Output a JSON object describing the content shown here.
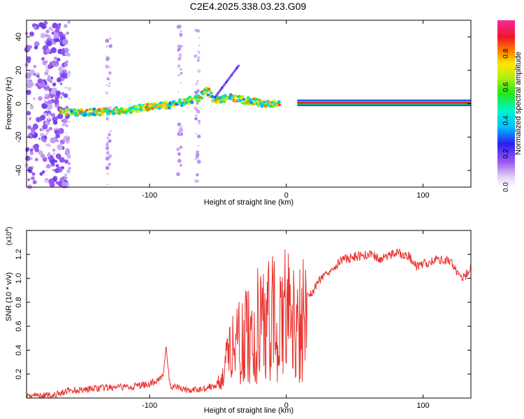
{
  "title": "C2E4.2025.338.03.23.G09",
  "chart_data": [
    {
      "type": "heatmap",
      "xlabel": "Height of straight line (km)",
      "ylabel": "Frequency (Hz)",
      "xlim": [
        -190,
        135
      ],
      "ylim": [
        -50,
        50
      ],
      "x_ticks": [
        -100,
        0,
        100
      ],
      "y_ticks": [
        -40,
        -20,
        0,
        20,
        40
      ],
      "colorbar": {
        "label": "Normalized spectral amplitude",
        "range": [
          0.0,
          1.0
        ],
        "ticks": [
          0.0,
          0.2,
          0.4,
          0.6,
          0.8
        ]
      },
      "ridge": [
        [
          -165,
          -5.5
        ],
        [
          -140,
          -5
        ],
        [
          -120,
          -4
        ],
        [
          -100,
          -2
        ],
        [
          -80,
          0
        ],
        [
          -65,
          3
        ],
        [
          -58,
          8
        ],
        [
          -52,
          2
        ],
        [
          -40,
          4
        ],
        [
          -30,
          2
        ],
        [
          -15,
          0
        ],
        [
          0,
          0
        ],
        [
          10,
          0.5
        ],
        [
          135,
          0.5
        ]
      ]
    },
    {
      "type": "line",
      "xlabel": "Height of straight line (km)",
      "ylabel": "SNR (10 * v/v)",
      "y_multiplier": "(x10",
      "y_multiplier_exp": "4",
      "xlim": [
        -190,
        135
      ],
      "ylim": [
        0,
        1.4
      ],
      "x_ticks": [
        -100,
        0,
        100
      ],
      "y_ticks": [
        0.2,
        0.4,
        0.6,
        0.8,
        1.0,
        1.2
      ],
      "y_tick_labels": [
        "0.2",
        "0.4",
        "0.6",
        "0.8",
        "1.0",
        "1.2"
      ],
      "series": [
        {
          "name": "SNR",
          "color": "#e8332e",
          "x": [
            -190,
            -170,
            -160,
            -140,
            -120,
            -110,
            -100,
            -95,
            -90,
            -88,
            -86,
            -85,
            -80,
            -70,
            -60,
            -50,
            -45,
            -40,
            -30,
            -20,
            -10,
            0,
            5,
            10,
            15,
            20,
            25,
            30,
            40,
            50,
            60,
            70,
            80,
            90,
            95,
            100,
            110,
            120,
            125,
            130,
            135
          ],
          "y": [
            0.02,
            0.02,
            0.06,
            0.08,
            0.09,
            0.1,
            0.12,
            0.14,
            0.2,
            0.42,
            0.2,
            0.1,
            0.09,
            0.06,
            0.08,
            0.12,
            0.28,
            0.48,
            0.62,
            0.74,
            0.82,
            0.85,
            0.72,
            0.75,
            0.85,
            0.9,
            1.0,
            1.05,
            1.15,
            1.18,
            1.2,
            1.16,
            1.22,
            1.18,
            1.1,
            1.12,
            1.16,
            1.15,
            1.05,
            1.0,
            1.1
          ]
        }
      ]
    }
  ]
}
